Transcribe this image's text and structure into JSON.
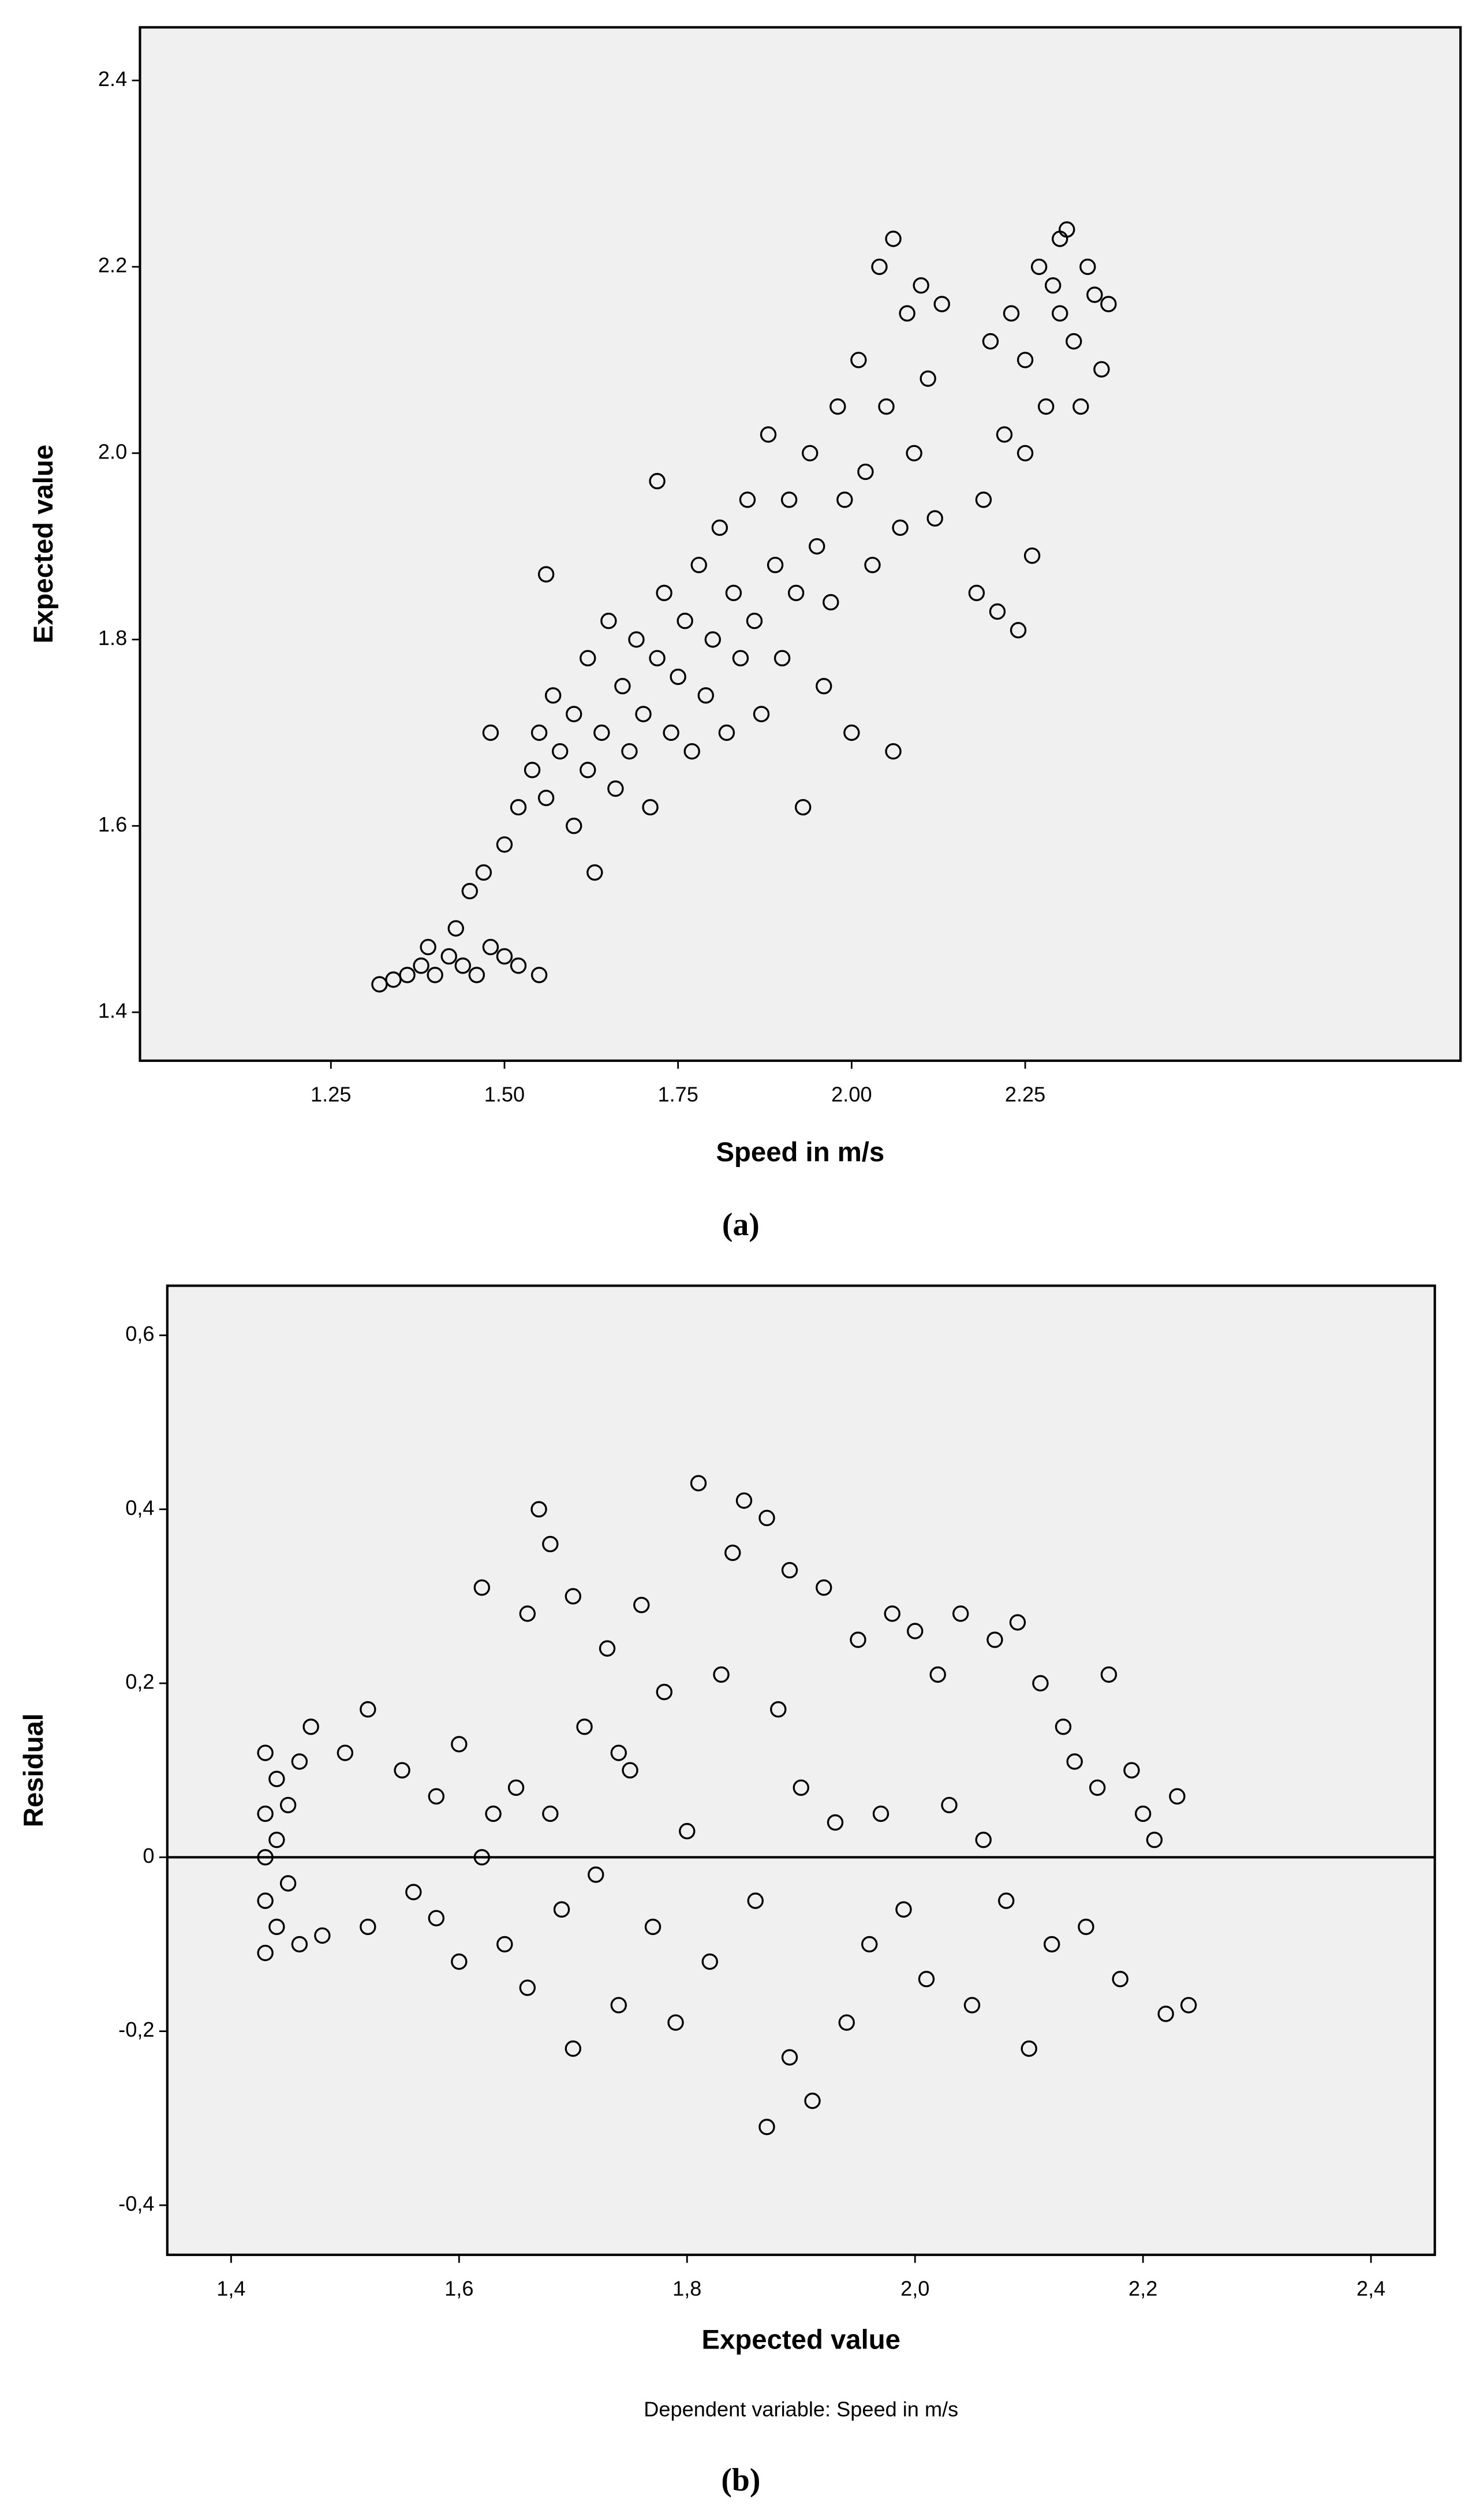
{
  "chart_data": [
    {
      "type": "scatter",
      "x_label": "Speed in m/s",
      "y_label": "Expected value",
      "caption": "(a)",
      "color": "#000000",
      "background": "#f0f0f0",
      "xlim": [
        0.975,
        2.877
      ],
      "ylim": [
        1.348,
        2.457
      ],
      "xticks": [
        {
          "value": 1.25,
          "label": "1.25"
        },
        {
          "value": 1.5,
          "label": "1.50"
        },
        {
          "value": 1.75,
          "label": "1.75"
        },
        {
          "value": 2.0,
          "label": "2.00"
        },
        {
          "value": 2.25,
          "label": "2.25"
        }
      ],
      "yticks": [
        1.4,
        1.6,
        1.8,
        {
          "value": 2.0,
          "label": "2.0"
        },
        2.2,
        2.4
      ],
      "x": [
        1.32,
        1.34,
        1.36,
        1.38,
        1.4,
        1.42,
        1.44,
        1.46,
        1.48,
        1.5,
        1.39,
        1.43,
        1.45,
        1.47,
        1.52,
        1.55,
        1.5,
        1.52,
        1.54,
        1.55,
        1.56,
        1.57,
        1.58,
        1.6,
        1.6,
        1.62,
        1.62,
        1.63,
        1.64,
        1.65,
        1.66,
        1.67,
        1.68,
        1.69,
        1.7,
        1.71,
        1.72,
        1.73,
        1.74,
        1.75,
        1.76,
        1.77,
        1.78,
        1.79,
        1.8,
        1.81,
        1.82,
        1.83,
        1.84,
        1.85,
        1.86,
        1.87,
        1.88,
        1.89,
        1.9,
        1.91,
        1.92,
        1.93,
        1.94,
        1.95,
        1.96,
        1.97,
        1.98,
        1.99,
        2.0,
        2.01,
        2.02,
        2.03,
        2.04,
        2.05,
        2.06,
        2.06,
        2.07,
        2.08,
        2.09,
        2.1,
        2.11,
        2.13,
        2.12,
        1.56,
        1.48,
        1.72,
        2.18,
        2.19,
        2.2,
        2.21,
        2.22,
        2.23,
        2.24,
        2.25,
        2.26,
        2.27,
        2.28,
        2.29,
        2.3,
        2.31,
        2.32,
        2.33,
        2.34,
        2.35,
        2.36,
        2.37,
        2.25,
        2.3
      ],
      "y": [
        1.43,
        1.435,
        1.44,
        1.45,
        1.44,
        1.46,
        1.45,
        1.44,
        1.47,
        1.46,
        1.47,
        1.49,
        1.53,
        1.55,
        1.45,
        1.44,
        1.58,
        1.62,
        1.66,
        1.7,
        1.63,
        1.74,
        1.68,
        1.6,
        1.72,
        1.66,
        1.78,
        1.55,
        1.7,
        1.82,
        1.64,
        1.75,
        1.68,
        1.8,
        1.72,
        1.62,
        1.78,
        1.85,
        1.7,
        1.76,
        1.82,
        1.68,
        1.88,
        1.74,
        1.8,
        1.92,
        1.7,
        1.85,
        1.78,
        1.95,
        1.82,
        1.72,
        2.02,
        1.88,
        1.78,
        1.95,
        1.85,
        1.62,
        2.0,
        1.9,
        1.75,
        1.84,
        2.05,
        1.95,
        1.7,
        2.1,
        1.98,
        1.88,
        2.2,
        2.05,
        1.68,
        2.23,
        1.92,
        2.15,
        2.0,
        2.18,
        2.08,
        2.16,
        1.93,
        1.87,
        1.7,
        1.97,
        1.85,
        1.95,
        2.12,
        1.83,
        2.02,
        2.15,
        1.81,
        2.1,
        1.89,
        2.2,
        2.05,
        2.18,
        2.23,
        2.24,
        2.12,
        2.05,
        2.2,
        2.17,
        2.09,
        2.16,
        2.0,
        2.15
      ]
    },
    {
      "type": "scatter",
      "x_label": "Expected value",
      "y_label": "Residual",
      "note": "Dependent variable: Speed in m/s",
      "caption": "(b)",
      "color": "#000000",
      "background": "#f0f0f0",
      "reference_y": 0,
      "xlim": [
        1.344,
        2.456
      ],
      "ylim": [
        -0.457,
        0.657
      ],
      "xticks": [
        {
          "value": 1.4,
          "label": "1,4"
        },
        {
          "value": 1.6,
          "label": "1,6"
        },
        {
          "value": 1.8,
          "label": "1,8"
        },
        {
          "value": 2.0,
          "label": "2,0"
        },
        {
          "value": 2.2,
          "label": "2,2"
        },
        {
          "value": 2.4,
          "label": "2,4"
        }
      ],
      "yticks": [
        {
          "value": -0.4,
          "label": "-0,4"
        },
        {
          "value": -0.2,
          "label": "-0,2"
        },
        0,
        {
          "value": 0.2,
          "label": "0,2"
        },
        {
          "value": 0.4,
          "label": "0,4"
        },
        {
          "value": 0.6,
          "label": "0,6"
        }
      ],
      "x": [
        1.43,
        1.43,
        1.43,
        1.43,
        1.43,
        1.44,
        1.44,
        1.44,
        1.45,
        1.45,
        1.46,
        1.46,
        1.47,
        1.48,
        1.5,
        1.52,
        1.52,
        1.55,
        1.56,
        1.58,
        1.6,
        1.6,
        1.62,
        1.62,
        1.64,
        1.65,
        1.66,
        1.66,
        1.67,
        1.68,
        1.68,
        1.69,
        1.7,
        1.7,
        1.71,
        1.72,
        1.73,
        1.74,
        1.75,
        1.76,
        1.77,
        1.78,
        1.79,
        1.8,
        1.81,
        1.82,
        1.83,
        1.84,
        1.85,
        1.86,
        1.87,
        1.87,
        1.88,
        1.89,
        1.89,
        1.9,
        1.91,
        1.92,
        1.93,
        1.94,
        1.95,
        1.96,
        1.97,
        1.98,
        1.99,
        2.0,
        2.01,
        2.02,
        2.03,
        2.04,
        2.05,
        2.06,
        2.07,
        2.08,
        2.09,
        2.1,
        2.11,
        2.12,
        2.13,
        2.14,
        2.15,
        2.16,
        2.17,
        2.18,
        2.19,
        2.2,
        2.21,
        2.22,
        2.23,
        2.24,
        1.58,
        1.63,
        1.74
      ],
      "y": [
        -0.11,
        -0.05,
        0.0,
        0.05,
        0.12,
        -0.08,
        0.02,
        0.09,
        -0.03,
        0.06,
        -0.1,
        0.11,
        0.15,
        -0.09,
        0.12,
        0.17,
        -0.08,
        0.1,
        -0.04,
        0.07,
        -0.12,
        0.13,
        0.31,
        0.0,
        -0.1,
        0.08,
        0.28,
        -0.15,
        0.4,
        0.36,
        0.05,
        -0.06,
        0.3,
        -0.22,
        0.15,
        -0.02,
        0.24,
        -0.17,
        0.1,
        0.29,
        -0.08,
        0.19,
        -0.19,
        0.03,
        0.43,
        -0.12,
        0.21,
        0.35,
        0.41,
        -0.05,
        0.39,
        -0.31,
        0.17,
        0.33,
        -0.23,
        0.08,
        -0.28,
        0.31,
        0.04,
        -0.19,
        0.25,
        -0.1,
        0.05,
        0.28,
        -0.06,
        0.26,
        -0.14,
        0.21,
        0.06,
        0.28,
        -0.17,
        0.02,
        0.25,
        -0.05,
        0.27,
        -0.22,
        0.2,
        -0.1,
        0.15,
        0.11,
        -0.08,
        0.08,
        0.21,
        -0.14,
        0.1,
        0.05,
        0.02,
        -0.18,
        0.07,
        -0.17,
        -0.07,
        0.05,
        0.12
      ]
    }
  ]
}
